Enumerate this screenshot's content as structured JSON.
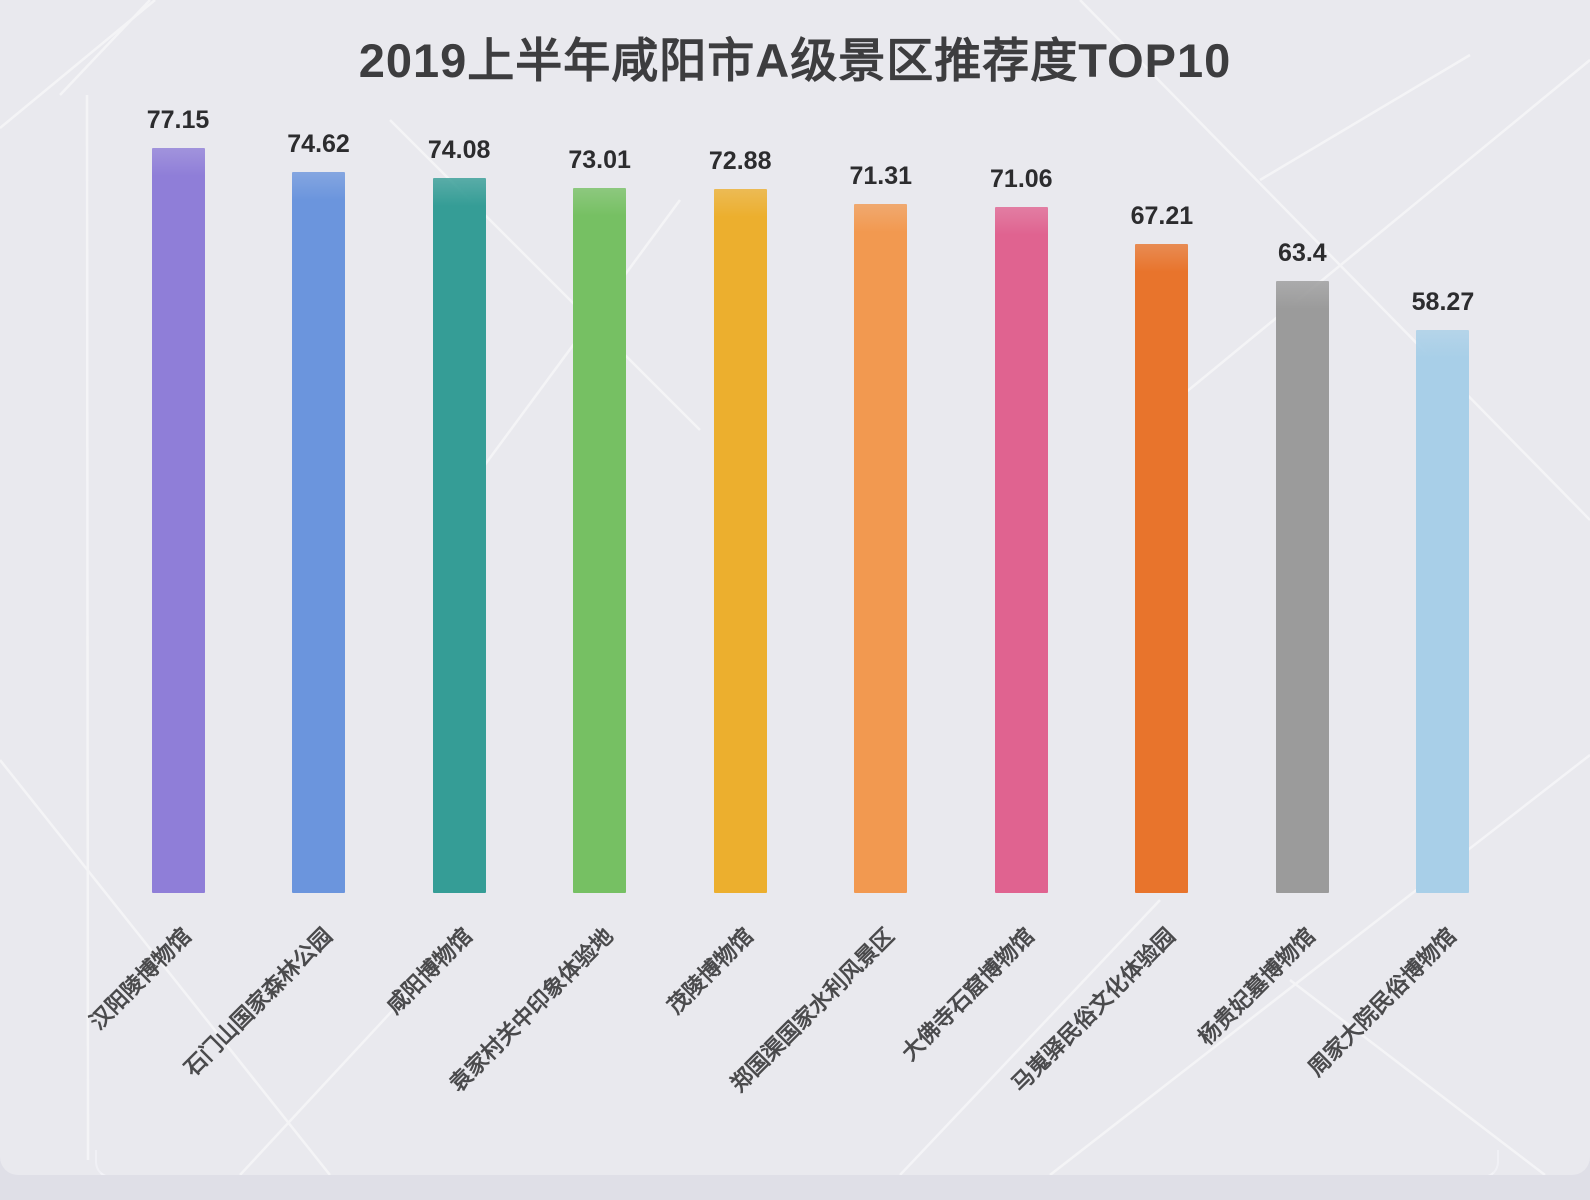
{
  "title": "2019上半年咸阳市A级景区推荐度TOP10",
  "chart_data": {
    "type": "bar",
    "title": "2019上半年咸阳市A级景区推荐度TOP10",
    "categories": [
      "汉阳陵博物馆",
      "石门山国家森林公园",
      "咸阳博物馆",
      "袁家村关中印象体验地",
      "茂陵博物馆",
      "郑国渠国家水利风景区",
      "大佛寺石窟博物馆",
      "马嵬驿民俗文化体验园",
      "杨贵妃墓博物馆",
      "周家大院民俗博物馆"
    ],
    "values": [
      77.15,
      74.62,
      74.08,
      73.01,
      72.88,
      71.31,
      71.06,
      67.21,
      63.4,
      58.27
    ],
    "value_labels": [
      "77.15",
      "74.62",
      "74.08",
      "73.01",
      "72.88",
      "71.31",
      "71.06",
      "67.21",
      "63.4",
      "58.27"
    ],
    "bar_colors": [
      "#8f7ed8",
      "#6b95dd",
      "#359d96",
      "#76c063",
      "#ecaf2e",
      "#f29950",
      "#e06390",
      "#e8742c",
      "#9b9b9b",
      "#a8cfe8"
    ],
    "xlabel": "",
    "ylabel": "",
    "ylim": [
      0,
      80
    ],
    "grid": false,
    "legend": "none",
    "x_label_rotation": 45,
    "background_color": "#e9e9ee",
    "title_color": "#3d3d3f",
    "value_label_color": "#2c2c2e",
    "category_label_color": "#4a4a4c"
  }
}
